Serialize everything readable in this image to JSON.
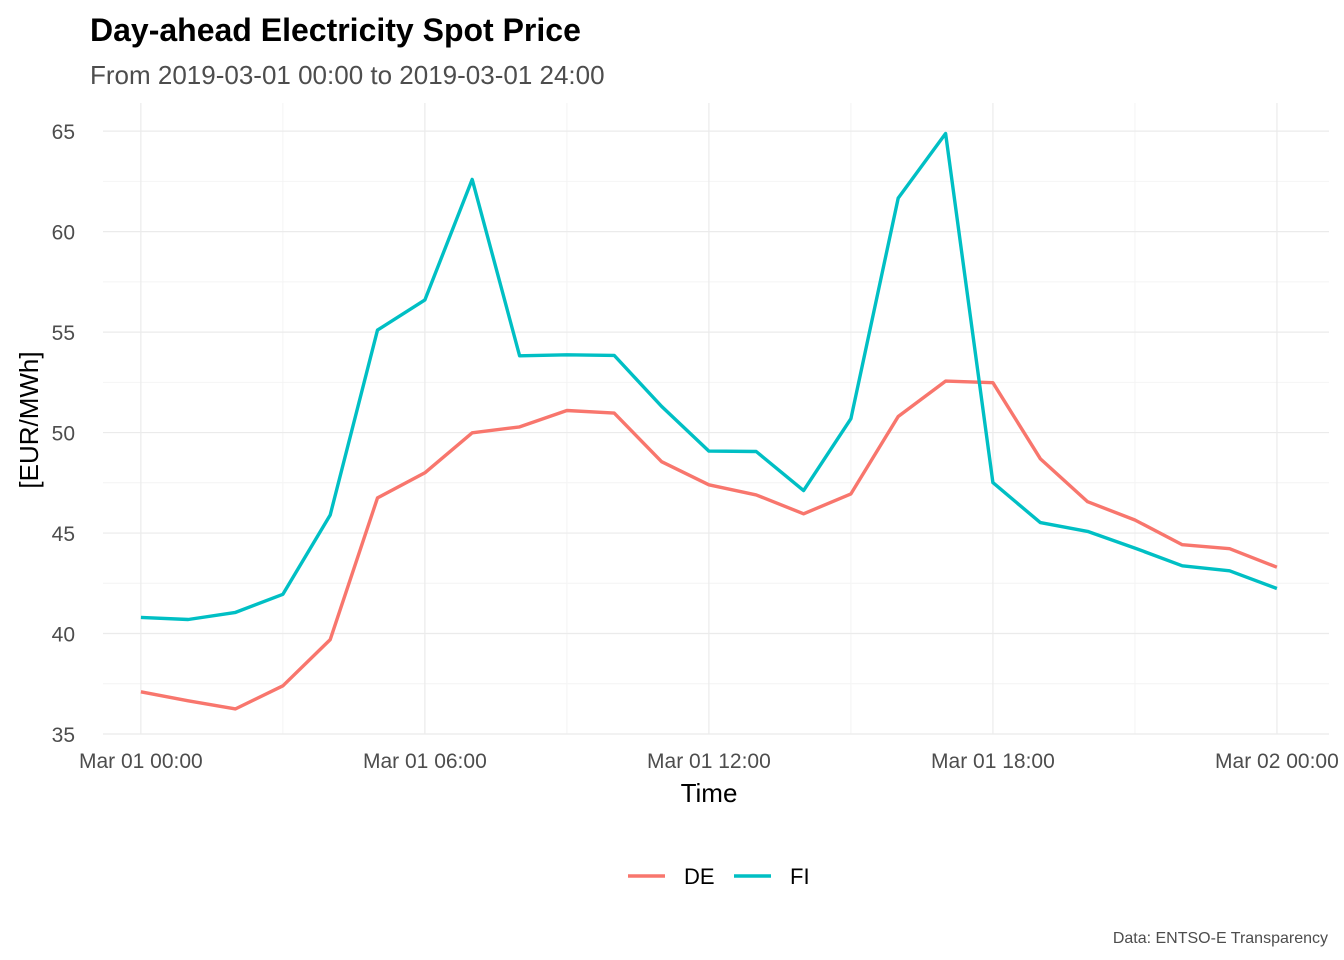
{
  "chart_data": {
    "type": "line",
    "title": "Day-ahead Electricity Spot Price",
    "subtitle": "From 2019-03-01 00:00 to 2019-03-01 24:00",
    "xlabel": "Time",
    "ylabel": "[EUR/MWh]",
    "caption": "Data: ENTSO-E Transparency",
    "x_unit": "hour",
    "x": [
      0,
      1,
      2,
      3,
      4,
      5,
      6,
      7,
      8,
      9,
      10,
      11,
      12,
      13,
      14,
      15,
      16,
      17,
      18,
      19,
      20,
      21,
      22,
      23,
      24
    ],
    "x_ticks": [
      {
        "value": 0,
        "label": "Mar 01 00:00"
      },
      {
        "value": 6,
        "label": "Mar 01 06:00"
      },
      {
        "value": 12,
        "label": "Mar 01 12:00"
      },
      {
        "value": 18,
        "label": "Mar 01 18:00"
      },
      {
        "value": 24,
        "label": "Mar 02 00:00"
      }
    ],
    "xlim": [
      -0.8,
      25.1
    ],
    "ylim": [
      35,
      66.4
    ],
    "y_ticks": [
      35,
      40,
      45,
      50,
      55,
      60,
      65
    ],
    "grid": true,
    "legend_position": "bottom",
    "series": [
      {
        "name": "DE",
        "color": "#F8766D",
        "values": [
          37.1,
          36.65,
          36.25,
          37.4,
          39.7,
          46.75,
          48.0,
          49.99,
          50.28,
          51.1,
          50.97,
          48.55,
          47.4,
          46.9,
          45.96,
          46.95,
          50.8,
          52.56,
          52.48,
          48.7,
          46.56,
          45.65,
          44.42,
          44.22,
          43.3
        ]
      },
      {
        "name": "FI",
        "color": "#00BFC4",
        "values": [
          40.8,
          40.7,
          41.05,
          41.95,
          45.9,
          55.1,
          56.6,
          62.6,
          53.82,
          53.87,
          53.84,
          51.3,
          49.08,
          49.06,
          47.11,
          50.69,
          61.67,
          64.88,
          47.51,
          45.52,
          45.08,
          44.25,
          43.37,
          43.12,
          42.24
        ]
      }
    ]
  }
}
